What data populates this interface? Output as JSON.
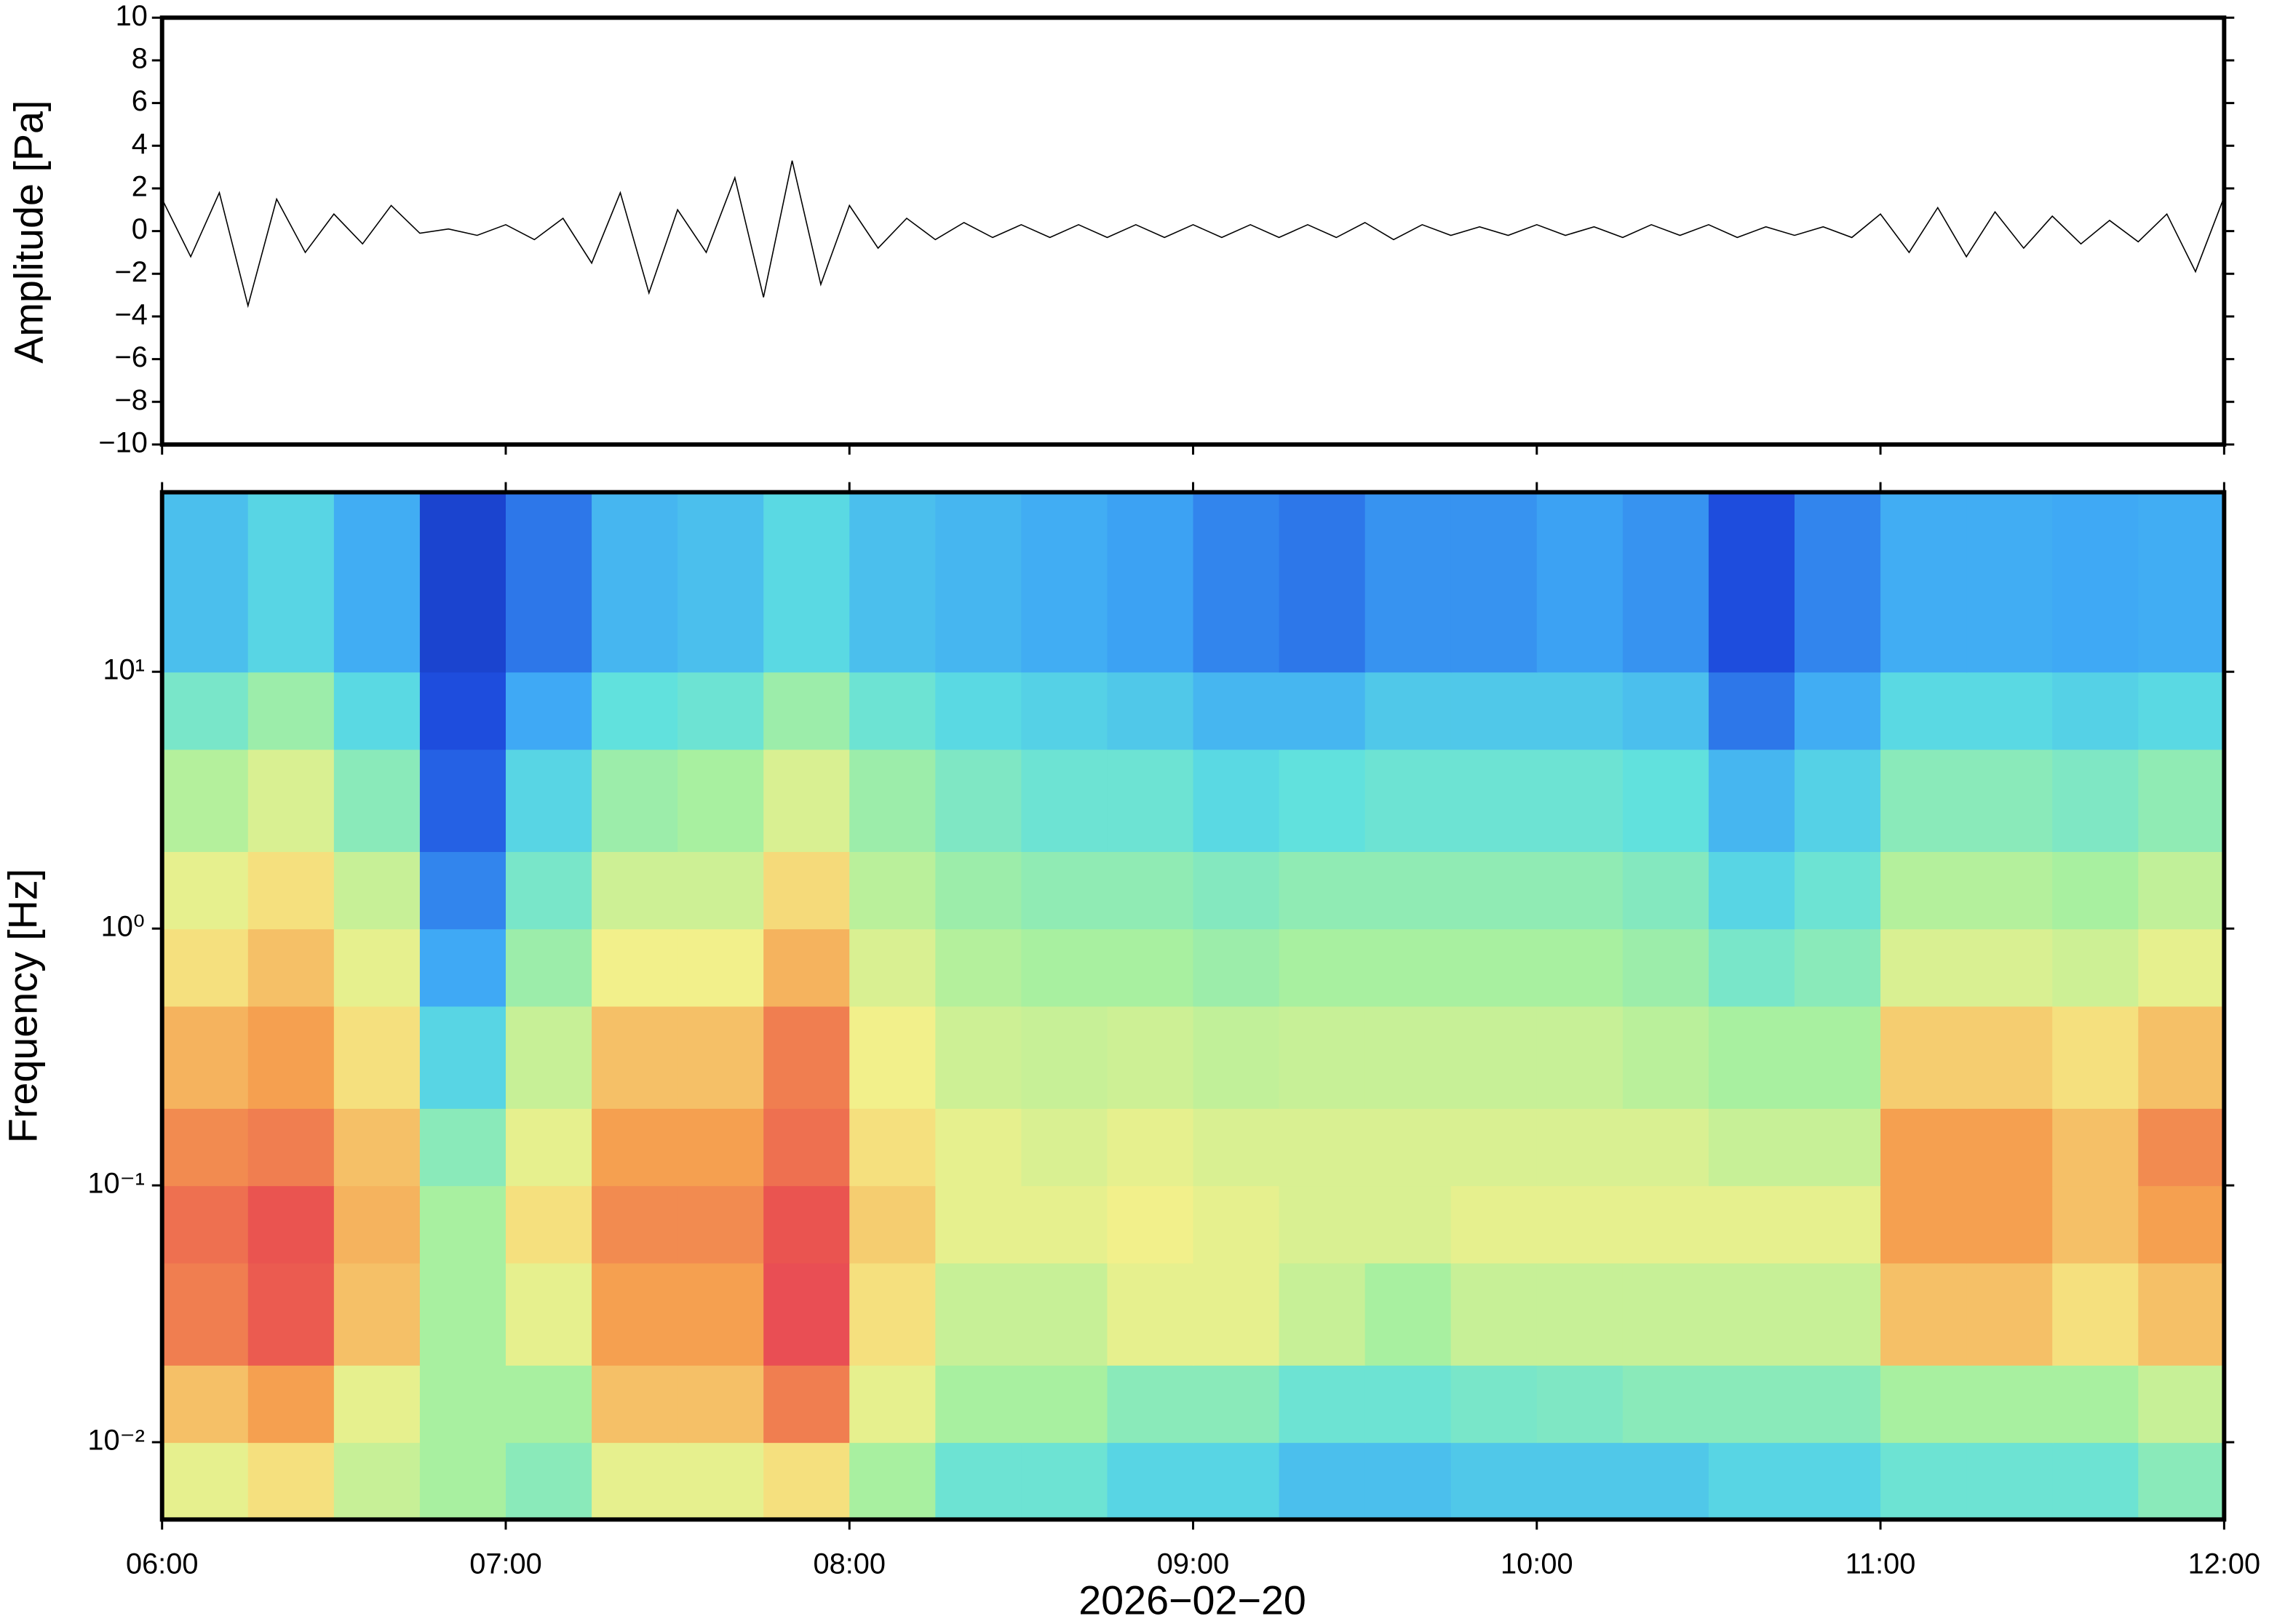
{
  "chart_data": [
    {
      "type": "line",
      "ylabel": "Amplitude [Pa]",
      "color": "#000000",
      "x": [
        "06:00",
        "06:05",
        "06:10",
        "06:15",
        "06:20",
        "06:25",
        "06:30",
        "06:35",
        "06:40",
        "06:45",
        "06:50",
        "06:55",
        "07:00",
        "07:05",
        "07:10",
        "07:15",
        "07:20",
        "07:25",
        "07:30",
        "07:35",
        "07:40",
        "07:45",
        "07:50",
        "07:55",
        "08:00",
        "08:05",
        "08:10",
        "08:15",
        "08:20",
        "08:25",
        "08:30",
        "08:35",
        "08:40",
        "08:45",
        "08:50",
        "08:55",
        "09:00",
        "09:05",
        "09:10",
        "09:15",
        "09:20",
        "09:25",
        "09:30",
        "09:35",
        "09:40",
        "09:45",
        "09:50",
        "09:55",
        "10:00",
        "10:05",
        "10:10",
        "10:15",
        "10:20",
        "10:25",
        "10:30",
        "10:35",
        "10:40",
        "10:45",
        "10:50",
        "10:55",
        "11:00",
        "11:05",
        "11:10",
        "11:15",
        "11:20",
        "11:25",
        "11:30",
        "11:35",
        "11:40",
        "11:45",
        "11:50",
        "11:55",
        "12:00"
      ],
      "values": [
        1.5,
        -1.2,
        1.8,
        -3.5,
        1.5,
        -1,
        0.8,
        -0.6,
        1.2,
        -0.1,
        0.1,
        -0.2,
        0.3,
        -0.4,
        0.6,
        -1.5,
        1.8,
        -2.9,
        1,
        -1,
        2.5,
        -3.1,
        3.3,
        -2.5,
        1.2,
        -0.8,
        0.6,
        -0.4,
        0.4,
        -0.3,
        0.3,
        -0.3,
        0.3,
        -0.3,
        0.3,
        -0.3,
        0.3,
        -0.3,
        0.3,
        -0.3,
        0.3,
        -0.3,
        0.4,
        -0.4,
        0.3,
        -0.2,
        0.2,
        -0.2,
        0.3,
        -0.2,
        0.2,
        -0.3,
        0.3,
        -0.2,
        0.3,
        -0.3,
        0.2,
        -0.2,
        0.2,
        -0.3,
        0.8,
        -1,
        1.1,
        -1.2,
        0.9,
        -0.8,
        0.7,
        -0.6,
        0.5,
        -0.5,
        0.8,
        -1.9,
        1.6
      ],
      "xlim": [
        "06:00",
        "12:00"
      ],
      "ylim": [
        -10,
        10
      ],
      "yticks": [
        {
          "value": -10,
          "label": "−10"
        },
        {
          "value": -8,
          "label": "−8"
        },
        {
          "value": -6,
          "label": "−6"
        },
        {
          "value": -4,
          "label": "−4"
        },
        {
          "value": -2,
          "label": "−2"
        },
        0,
        2,
        4,
        6,
        8,
        10
      ]
    },
    {
      "type": "heatmap",
      "ylabel": "Frequency [Hz]",
      "xlabel": "2026−02−20",
      "log_y": true,
      "xlim": [
        "06:00",
        "12:00"
      ],
      "ylim": [
        0.005,
        50
      ],
      "xticks": [
        "06:00",
        "07:00",
        "08:00",
        "09:00",
        "10:00",
        "11:00",
        "12:00"
      ],
      "yticks": [
        {
          "value": 0.01,
          "label": "10⁻²"
        },
        {
          "value": 0.1,
          "label": "10⁻¹"
        },
        {
          "value": 1,
          "label": "10⁰"
        },
        {
          "value": 10,
          "label": "10¹"
        }
      ],
      "xbins": [
        "06:00",
        "06:15",
        "06:30",
        "06:45",
        "07:00",
        "07:15",
        "07:30",
        "07:45",
        "08:00",
        "08:15",
        "08:30",
        "08:45",
        "09:00",
        "09:15",
        "09:30",
        "09:45",
        "10:00",
        "10:15",
        "10:30",
        "10:45",
        "11:00",
        "11:15",
        "11:30",
        "11:45",
        "12:00"
      ],
      "ybins": [
        0.005,
        0.01,
        0.02,
        0.05,
        0.1,
        0.2,
        0.5,
        1,
        2,
        5,
        10,
        50
      ],
      "zlim": [
        0,
        10
      ],
      "colors": [
        "#0a1a8c",
        "#1f4fe0",
        "#3fa9f5",
        "#5ee0e0",
        "#a8f0a0",
        "#f5f08a",
        "#f5a050",
        "#e84a50",
        "#ffb0b8"
      ],
      "z": [
        [
          6,
          6.5,
          5.5,
          5,
          4.5,
          6,
          6,
          6.5,
          5,
          4,
          4,
          3.5,
          3.5,
          3,
          3,
          3.2,
          3.2,
          3.2,
          3.5,
          3.5,
          4,
          4,
          4,
          4.5
        ],
        [
          7,
          7.5,
          6,
          5,
          5,
          7,
          7,
          8,
          6,
          5,
          5,
          4.5,
          4.5,
          4,
          4,
          4.2,
          4.3,
          4.5,
          4.5,
          4.5,
          5,
          5,
          5,
          5.5
        ],
        [
          8,
          8.5,
          7,
          5,
          6,
          7.5,
          7.5,
          8.8,
          6.5,
          5.5,
          5.5,
          6,
          6,
          5.5,
          5,
          5.5,
          5.5,
          5.5,
          5.5,
          5.5,
          7,
          7,
          6.5,
          7
        ],
        [
          8.2,
          8.6,
          7.2,
          5,
          6.5,
          7.8,
          7.8,
          8.6,
          6.8,
          6,
          6,
          6.2,
          6,
          5.8,
          5.8,
          6,
          6,
          6,
          6,
          6,
          7.5,
          7.5,
          7,
          7.5
        ],
        [
          7.8,
          8,
          7,
          4.5,
          6,
          7.5,
          7.5,
          8.2,
          6.5,
          6,
          5.8,
          6,
          5.8,
          5.8,
          5.8,
          5.8,
          5.8,
          5.8,
          5.5,
          5.5,
          7.5,
          7.5,
          7,
          7.8
        ],
        [
          7.2,
          7.5,
          6.5,
          3.5,
          5.5,
          7,
          7,
          8,
          6.2,
          5.6,
          5.5,
          5.6,
          5.4,
          5.5,
          5.5,
          5.5,
          5.5,
          5.3,
          5,
          5,
          6.8,
          6.8,
          6.5,
          7
        ],
        [
          6.5,
          7,
          6,
          2.5,
          4.8,
          6.2,
          6.2,
          7.2,
          5.8,
          5.2,
          5,
          5,
          4.8,
          5,
          5,
          5,
          5,
          4.8,
          4.2,
          4.5,
          5.8,
          5.8,
          5.6,
          6
        ],
        [
          6,
          6.5,
          5.5,
          2,
          4.2,
          5.6,
          5.6,
          6.6,
          5.3,
          4.8,
          4.6,
          4.6,
          4.4,
          4.6,
          4.6,
          4.6,
          4.6,
          4.4,
          3.5,
          4,
          5.2,
          5.2,
          5,
          5.4
        ],
        [
          5.2,
          5.8,
          4.5,
          1.5,
          3.5,
          4.8,
          5,
          5.8,
          4.8,
          4.3,
          4,
          4,
          3.6,
          3.8,
          4,
          4,
          4,
          3.8,
          2.8,
          3.4,
          4.5,
          4.5,
          4.3,
          4.6
        ],
        [
          4.2,
          4.8,
          3.6,
          1.2,
          2.5,
          3.8,
          4,
          4.8,
          4,
          3.6,
          3.4,
          3.2,
          2.8,
          2.8,
          3.2,
          3.2,
          3.2,
          3,
          1.8,
          2.6,
          3.6,
          3.6,
          3.4,
          3.6
        ],
        [
          3,
          3.5,
          2.6,
          1,
          1.8,
          2.8,
          3,
          3.6,
          3,
          2.8,
          2.6,
          2.4,
          2,
          1.8,
          2.2,
          2.2,
          2.4,
          2.2,
          1.2,
          2,
          2.6,
          2.6,
          2.5,
          2.6
        ]
      ]
    }
  ]
}
